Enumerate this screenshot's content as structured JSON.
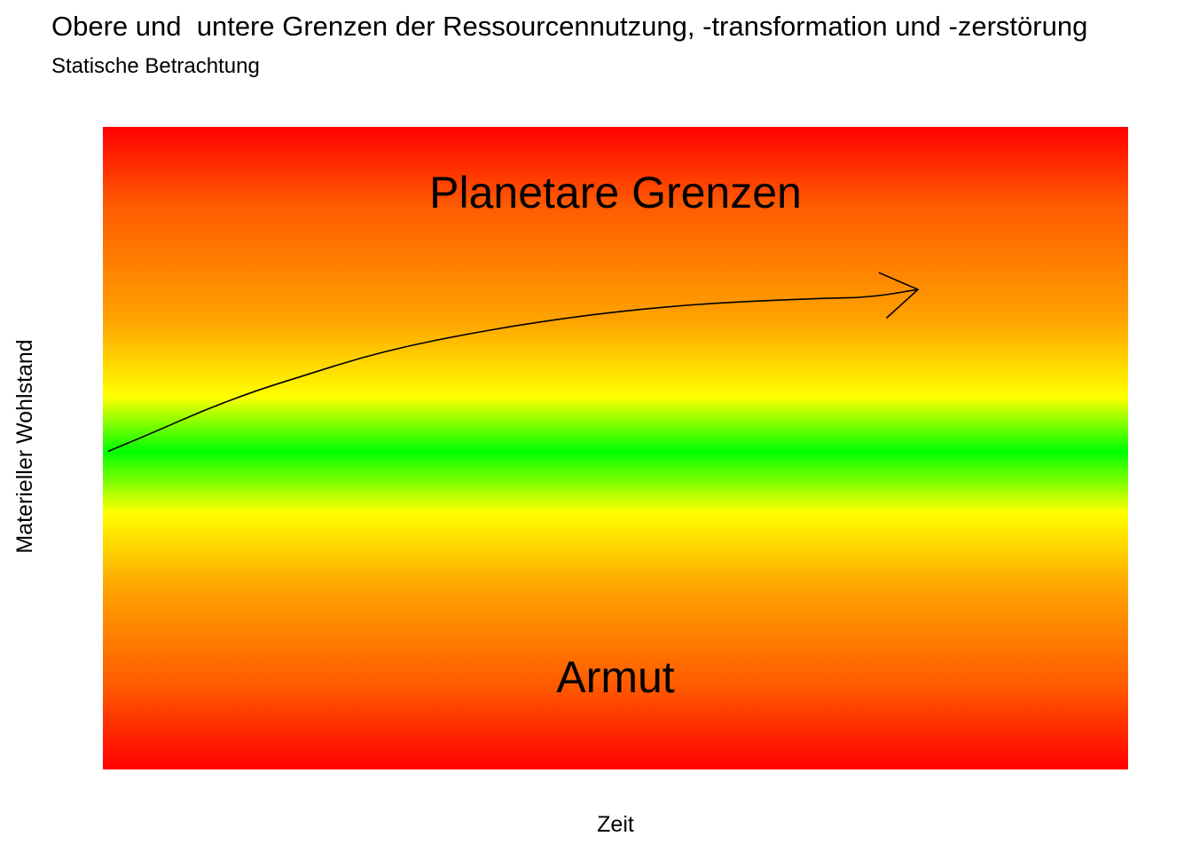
{
  "chart_data": {
    "type": "line",
    "title": "Obere und  untere Grenzen der Ressourcennutzung, -transformation und -zerstörung",
    "subtitle": "Statische Betrachtung",
    "xlabel": "Zeit",
    "ylabel": "Materieller Wohlstand",
    "upper_region_label": "Planetare Grenzen",
    "lower_region_label": "Armut",
    "background_gradient": [
      "#ff0000",
      "#ff5a00",
      "#ffa200",
      "#ffff00",
      "#00ff00",
      "#ffff00",
      "#ffa200",
      "#ff5a00",
      "#ff0000"
    ],
    "xlim": [
      0,
      1
    ],
    "ylim": [
      0,
      1
    ],
    "grid": false,
    "series": [
      {
        "x": [
          0.005,
          0.05,
          0.1,
          0.15,
          0.2,
          0.25,
          0.3,
          0.35,
          0.4,
          0.45,
          0.5,
          0.55,
          0.6,
          0.65,
          0.7,
          0.75,
          0.795
        ],
        "y": [
          0.495,
          0.525,
          0.56,
          0.59,
          0.615,
          0.64,
          0.66,
          0.676,
          0.69,
          0.702,
          0.712,
          0.72,
          0.726,
          0.73,
          0.733,
          0.735,
          0.747
        ],
        "arrow_head": "end",
        "color": "#000000"
      }
    ]
  }
}
